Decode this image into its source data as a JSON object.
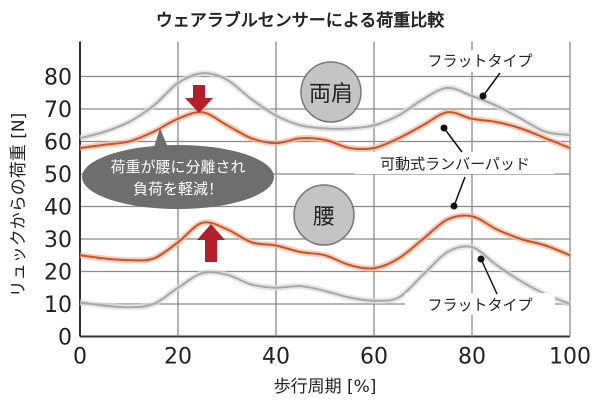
{
  "chart_data": {
    "type": "line",
    "title": "ウェアラブルセンサーによる荷重比較",
    "xlabel": "歩行周期 [%]",
    "ylabel": "リュックからの荷重 [N]",
    "xlim": [
      0,
      100
    ],
    "ylim": [
      0,
      80
    ],
    "xticks": [
      "0",
      "20",
      "40",
      "60",
      "80",
      "100"
    ],
    "yticks": [
      "0",
      "10",
      "20",
      "30",
      "40",
      "50",
      "60",
      "70",
      "80"
    ],
    "grid": true,
    "x": [
      0,
      5,
      10,
      15,
      20,
      25,
      30,
      35,
      40,
      45,
      50,
      55,
      60,
      65,
      70,
      75,
      80,
      85,
      90,
      95,
      100
    ],
    "series": [
      {
        "group": "両肩",
        "name": "フラットタイプ",
        "color": "#a8a8a8",
        "values": [
          61,
          63,
          66,
          71,
          78,
          81,
          79,
          73,
          68,
          65,
          64,
          64,
          65,
          68,
          73,
          76.5,
          74,
          71,
          67,
          63,
          62
        ]
      },
      {
        "group": "両肩",
        "name": "可動式ランバーパッド",
        "color": "#c8552a",
        "values": [
          58,
          59,
          60,
          63,
          67,
          69,
          65,
          61,
          59.5,
          61,
          60.5,
          58,
          58,
          61,
          65,
          69,
          67,
          66,
          64,
          61,
          58
        ]
      },
      {
        "group": "腰",
        "name": "可動式ランバーパッド",
        "color": "#c8552a",
        "values": [
          25,
          24,
          23.5,
          24,
          29,
          35,
          33,
          29,
          28,
          26,
          25,
          22,
          21,
          24,
          30,
          36,
          37,
          33,
          30,
          28,
          25
        ]
      },
      {
        "group": "腰",
        "name": "フラットタイプ",
        "color": "#a8a8a8",
        "values": [
          10.5,
          9.5,
          9,
          10,
          15,
          19.5,
          19,
          16,
          15,
          15.5,
          14,
          12,
          11,
          12,
          19,
          26,
          27.5,
          22,
          17,
          13,
          10
        ]
      }
    ],
    "annotations": {
      "shoulder_badge": "両肩",
      "waist_badge": "腰",
      "flat_label_top": "フラットタイプ",
      "lumbar_label": "可動式ランバーパッド",
      "flat_label_bottom": "フラットタイプ",
      "bubble_line1": "荷重が腰に分離され",
      "bubble_line2": "負荷を軽減！"
    },
    "colors": {
      "arrow": "#b3202a",
      "bubble": "#6e6e6e",
      "badge": "#c4c4c4"
    }
  }
}
